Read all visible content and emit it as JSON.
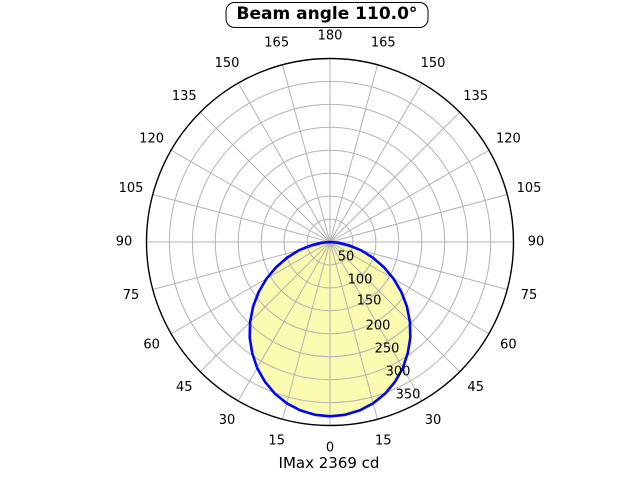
{
  "title": "Beam angle 110.0°",
  "footer": "IMax 2369 cd",
  "chart_data": {
    "type": "polar",
    "title": "Beam angle 110.0°",
    "annotation": "IMax 2369 cd",
    "beam_angle_deg": 110.0,
    "imax_cd": 2369,
    "angle_tick_step_deg": 15,
    "angle_ticks_deg": [
      0,
      15,
      30,
      45,
      60,
      75,
      90,
      105,
      120,
      135,
      150,
      165,
      180
    ],
    "angle_ticks_mirrored": true,
    "radial_ticks": [
      50,
      100,
      150,
      200,
      250,
      300,
      350
    ],
    "radial_max": 400,
    "grid": true,
    "legend": false,
    "colors": {
      "curve": "#0000ff",
      "fill": "#fafab0",
      "grid": "#b3b3b3",
      "axis": "#000000",
      "background": "#ffffff"
    },
    "curve_points_deg_r": [
      [
        -90,
        0.0
      ],
      [
        -85,
        18.0
      ],
      [
        -80,
        42.6
      ],
      [
        -75,
        70.1
      ],
      [
        -70,
        99.4
      ],
      [
        -65,
        129.5
      ],
      [
        -60,
        159.8
      ],
      [
        -55,
        189.7
      ],
      [
        -50,
        218.7
      ],
      [
        -45,
        246.4
      ],
      [
        -40,
        272.3
      ],
      [
        -35,
        295.5
      ],
      [
        -30,
        317.3
      ],
      [
        -25,
        336.0
      ],
      [
        -20,
        351.6
      ],
      [
        -15,
        363.9
      ],
      [
        -10,
        372.8
      ],
      [
        -5,
        378.2
      ],
      [
        0,
        380.0
      ],
      [
        5,
        378.2
      ],
      [
        10,
        372.8
      ],
      [
        15,
        363.9
      ],
      [
        20,
        351.6
      ],
      [
        25,
        336.0
      ],
      [
        30,
        317.3
      ],
      [
        35,
        295.5
      ],
      [
        40,
        272.3
      ],
      [
        45,
        246.4
      ],
      [
        50,
        218.7
      ],
      [
        55,
        189.7
      ],
      [
        60,
        159.8
      ],
      [
        65,
        129.5
      ],
      [
        70,
        99.4
      ],
      [
        75,
        70.1
      ],
      [
        80,
        42.6
      ],
      [
        85,
        18.0
      ],
      [
        90,
        0.0
      ]
    ]
  }
}
